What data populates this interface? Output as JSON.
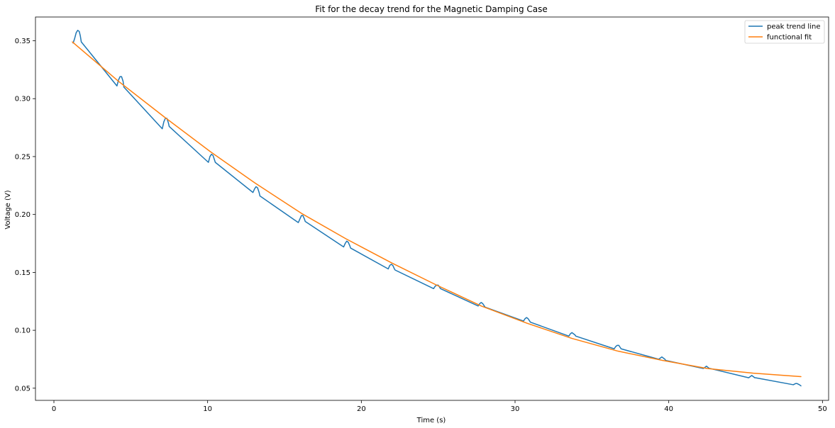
{
  "chart_data": {
    "type": "line",
    "title": "Fit for the decay trend for the Magnetic Damping Case",
    "xlabel": "Time (s)",
    "ylabel": "Voltage (V)",
    "xlim": [
      -1.2,
      50.4
    ],
    "ylim": [
      0.0395,
      0.3705
    ],
    "xticks": [
      0,
      10,
      20,
      30,
      40,
      50
    ],
    "yticks": [
      0.05,
      0.1,
      0.15,
      0.2,
      0.25,
      0.3,
      0.35
    ],
    "xtick_labels": [
      "0",
      "10",
      "20",
      "30",
      "40",
      "50"
    ],
    "ytick_labels": [
      "0.05",
      "0.10",
      "0.15",
      "0.20",
      "0.25",
      "0.30",
      "0.35"
    ],
    "grid": false,
    "legend_position": "top-right",
    "series": [
      {
        "name": "peak trend line",
        "color": "#1f77b4",
        "points": [
          [
            1.25,
            0.348
          ],
          [
            1.35,
            0.352
          ],
          [
            1.45,
            0.357
          ],
          [
            1.55,
            0.359
          ],
          [
            1.65,
            0.358
          ],
          [
            1.72,
            0.354
          ],
          [
            1.78,
            0.349
          ],
          [
            4.1,
            0.311
          ],
          [
            4.2,
            0.316
          ],
          [
            4.3,
            0.319
          ],
          [
            4.4,
            0.319
          ],
          [
            4.5,
            0.315
          ],
          [
            4.55,
            0.31
          ],
          [
            7.05,
            0.274
          ],
          [
            7.15,
            0.28
          ],
          [
            7.25,
            0.283
          ],
          [
            7.35,
            0.283
          ],
          [
            7.45,
            0.279
          ],
          [
            7.5,
            0.276
          ],
          [
            10.05,
            0.245
          ],
          [
            10.15,
            0.25
          ],
          [
            10.25,
            0.252
          ],
          [
            10.35,
            0.251
          ],
          [
            10.45,
            0.247
          ],
          [
            10.5,
            0.245
          ],
          [
            12.95,
            0.219
          ],
          [
            13.05,
            0.222
          ],
          [
            13.15,
            0.224
          ],
          [
            13.25,
            0.223
          ],
          [
            13.35,
            0.219
          ],
          [
            13.4,
            0.216
          ],
          [
            15.9,
            0.193
          ],
          [
            16.0,
            0.196
          ],
          [
            16.1,
            0.199
          ],
          [
            16.2,
            0.199
          ],
          [
            16.3,
            0.196
          ],
          [
            16.35,
            0.194
          ],
          [
            18.85,
            0.172
          ],
          [
            18.95,
            0.175
          ],
          [
            19.05,
            0.177
          ],
          [
            19.15,
            0.176
          ],
          [
            19.25,
            0.173
          ],
          [
            19.3,
            0.171
          ],
          [
            21.75,
            0.153
          ],
          [
            21.85,
            0.156
          ],
          [
            21.95,
            0.157
          ],
          [
            22.05,
            0.156
          ],
          [
            22.15,
            0.153
          ],
          [
            22.2,
            0.152
          ],
          [
            24.7,
            0.136
          ],
          [
            24.8,
            0.138
          ],
          [
            24.9,
            0.139
          ],
          [
            25.0,
            0.139
          ],
          [
            25.1,
            0.137
          ],
          [
            25.15,
            0.136
          ],
          [
            27.6,
            0.121
          ],
          [
            27.7,
            0.123
          ],
          [
            27.8,
            0.124
          ],
          [
            27.9,
            0.123
          ],
          [
            28.0,
            0.121
          ],
          [
            28.05,
            0.12
          ],
          [
            30.55,
            0.108
          ],
          [
            30.65,
            0.11
          ],
          [
            30.75,
            0.111
          ],
          [
            30.85,
            0.11
          ],
          [
            30.95,
            0.108
          ],
          [
            31.0,
            0.107
          ],
          [
            33.5,
            0.095
          ],
          [
            33.6,
            0.097
          ],
          [
            33.7,
            0.098
          ],
          [
            33.8,
            0.097
          ],
          [
            33.9,
            0.096
          ],
          [
            33.95,
            0.095
          ],
          [
            36.45,
            0.084
          ],
          [
            36.55,
            0.086
          ],
          [
            36.65,
            0.087
          ],
          [
            36.75,
            0.087
          ],
          [
            36.85,
            0.085
          ],
          [
            36.9,
            0.084
          ],
          [
            39.35,
            0.075
          ],
          [
            39.45,
            0.076
          ],
          [
            39.55,
            0.077
          ],
          [
            39.65,
            0.076
          ],
          [
            39.75,
            0.075
          ],
          [
            39.8,
            0.074
          ],
          [
            42.25,
            0.067
          ],
          [
            42.35,
            0.068
          ],
          [
            42.45,
            0.069
          ],
          [
            42.55,
            0.068
          ],
          [
            42.65,
            0.067
          ],
          [
            42.7,
            0.067
          ],
          [
            45.2,
            0.059
          ],
          [
            45.3,
            0.06
          ],
          [
            45.4,
            0.061
          ],
          [
            45.5,
            0.06
          ],
          [
            45.6,
            0.059
          ],
          [
            45.65,
            0.059
          ],
          [
            48.1,
            0.053
          ],
          [
            48.25,
            0.054
          ],
          [
            48.35,
            0.054
          ],
          [
            48.5,
            0.053
          ],
          [
            48.6,
            0.052
          ]
        ]
      },
      {
        "name": "functional fit",
        "color": "#ff7f0e",
        "points": [
          [
            1.2,
            0.349
          ],
          [
            4.2,
            0.315
          ],
          [
            7.2,
            0.284
          ],
          [
            10.2,
            0.254
          ],
          [
            13.1,
            0.227
          ],
          [
            16.1,
            0.201
          ],
          [
            19.0,
            0.179
          ],
          [
            22.0,
            0.158
          ],
          [
            24.9,
            0.139
          ],
          [
            27.8,
            0.121
          ],
          [
            30.8,
            0.106
          ],
          [
            33.7,
            0.093
          ],
          [
            36.7,
            0.082
          ],
          [
            39.6,
            0.074
          ],
          [
            42.5,
            0.067
          ],
          [
            45.5,
            0.063
          ],
          [
            48.6,
            0.06
          ]
        ]
      }
    ]
  }
}
